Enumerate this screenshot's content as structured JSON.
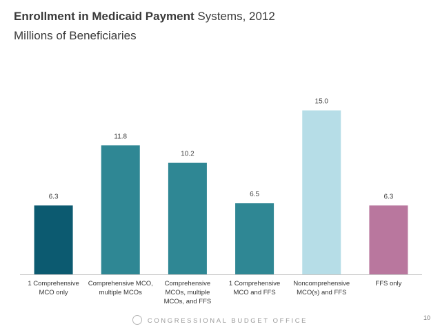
{
  "chart_data": {
    "type": "bar",
    "title_bold": "Enrollment in Medicaid Payment",
    "title_rest": "Systems, 2012",
    "subtitle": "Millions of Beneficiaries",
    "categories": [
      [
        "1 Comprehensive",
        "MCO only"
      ],
      [
        "Comprehensive MCO,",
        "multiple MCOs"
      ],
      [
        "Comprehensive",
        "MCOs, multiple",
        "MCOs, and FFS"
      ],
      [
        "1 Comprehensive",
        "MCO and FFS"
      ],
      [
        "Noncomprehensive",
        "MCO(s) and FFS"
      ],
      [
        "FFS only"
      ]
    ],
    "values": [
      6.3,
      11.8,
      10.2,
      6.5,
      15.0,
      6.3
    ],
    "value_labels": [
      "6.3",
      "11.8",
      "10.2",
      "6.5",
      "15.0",
      "6.3"
    ],
    "colors": [
      "#0c5a70",
      "#2f8794",
      "#2f8794",
      "#2f8794",
      "#b6dde7",
      "#b9779e"
    ],
    "ylim": [
      0,
      16.5
    ],
    "grid": false,
    "legend": "none"
  },
  "footer": {
    "organization": "CONGRESSIONAL BUDGET OFFICE",
    "page_number": "10"
  }
}
